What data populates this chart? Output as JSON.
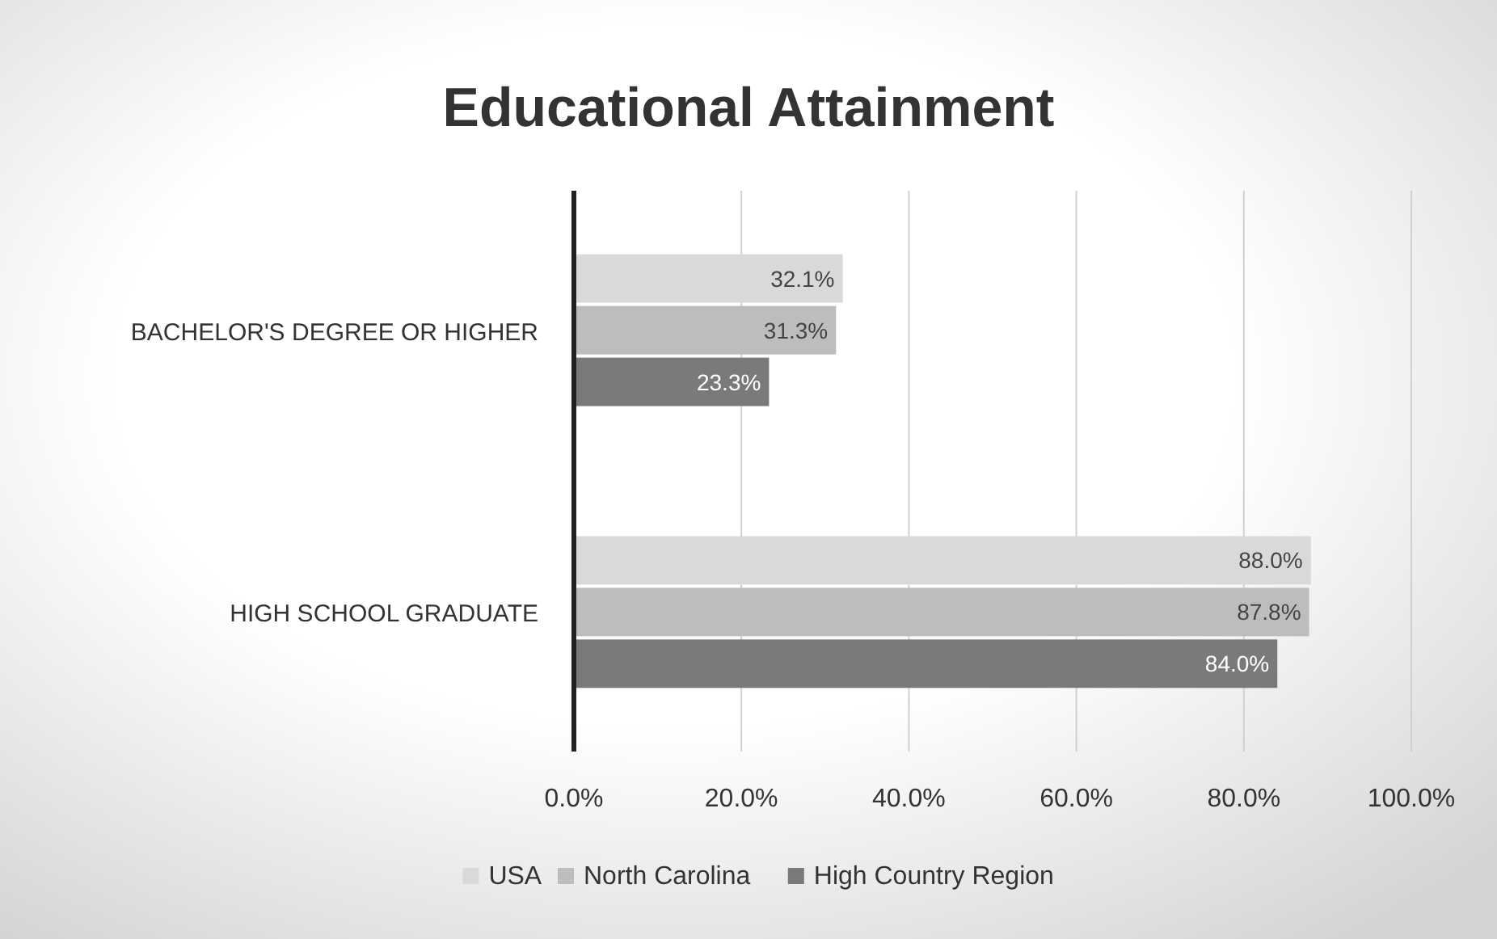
{
  "chart_data": {
    "type": "bar",
    "orientation": "horizontal",
    "title": "Educational Attainment",
    "categories": [
      "BACHELOR'S DEGREE OR HIGHER",
      "HIGH SCHOOL GRADUATE"
    ],
    "series": [
      {
        "name": "USA",
        "color": "#d9d9d9",
        "values": [
          32.1,
          88.0
        ],
        "value_labels": [
          "32.1%",
          "88.0%"
        ]
      },
      {
        "name": "North Carolina",
        "color": "#bdbdbd",
        "values": [
          31.3,
          87.8
        ],
        "value_labels": [
          "31.3%",
          "87.8%"
        ]
      },
      {
        "name": "High Country Region",
        "color": "#7a7a7a",
        "values": [
          23.3,
          84.0
        ],
        "value_labels": [
          "23.3%",
          "84.0%"
        ]
      }
    ],
    "xlim": [
      0,
      100
    ],
    "xticks": [
      {
        "value": 0,
        "label": "0.0%"
      },
      {
        "value": 20,
        "label": "20.0%"
      },
      {
        "value": 40,
        "label": "40.0%"
      },
      {
        "value": 60,
        "label": "60.0%"
      },
      {
        "value": 80,
        "label": "80.0%"
      },
      {
        "value": 100,
        "label": "100.0%"
      }
    ],
    "grid": "x",
    "legend": "bottom"
  }
}
